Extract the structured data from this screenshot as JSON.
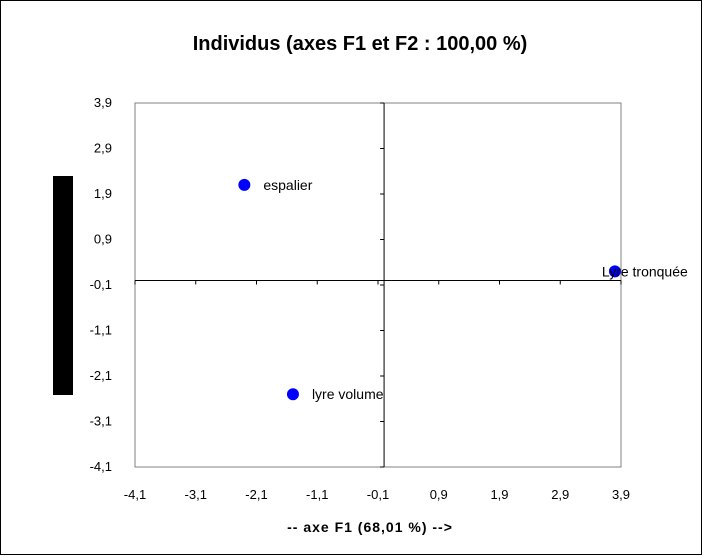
{
  "chart_data": {
    "type": "scatter",
    "title": "Individus (axes F1 et F2 : 100,00 %)",
    "xlabel": "-- axe F1 (68,01 %) -->",
    "ylabel": "",
    "xlim": [
      -4.1,
      3.9
    ],
    "ylim": [
      -4.1,
      3.9
    ],
    "xticks": [
      "-4,1",
      "-3,1",
      "-2,1",
      "-1,1",
      "-0,1",
      "0,9",
      "1,9",
      "2,9",
      "3,9"
    ],
    "yticks": [
      "3,9",
      "2,9",
      "1,9",
      "0,9",
      "-0,1",
      "-1,1",
      "-2,1",
      "-3,1",
      "-4,1"
    ],
    "grid": false,
    "points": [
      {
        "label": "espalier",
        "x": -2.3,
        "y": 2.1
      },
      {
        "label": "lyre volume",
        "x": -1.5,
        "y": -2.5
      },
      {
        "label": "Lyre tronquée",
        "x": 3.8,
        "y": 0.2
      }
    ],
    "colors": {
      "marker": "#0000ff",
      "axes": "#000000"
    }
  }
}
